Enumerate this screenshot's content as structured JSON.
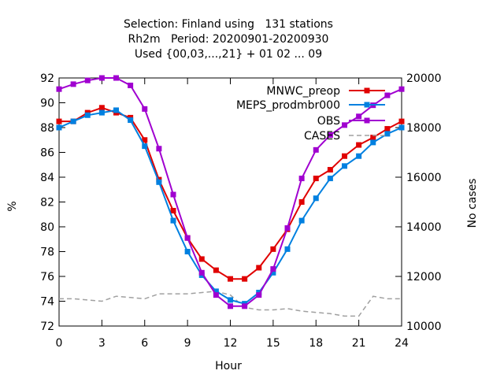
{
  "chart_data": {
    "type": "line",
    "title": [
      "Selection: Finland using   131 stations",
      "Rh2m   Period: 20200901-20200930",
      "Used {00,03,...,21} + 01 02 ... 09"
    ],
    "xlabel": "Hour",
    "ylabel": "%",
    "y2label": "No cases",
    "xlim": [
      0,
      24
    ],
    "ylim": [
      72,
      92
    ],
    "y2lim": [
      10000,
      20000
    ],
    "xticks": [
      0,
      3,
      6,
      9,
      12,
      15,
      18,
      21,
      24
    ],
    "yticks": [
      72,
      74,
      76,
      78,
      80,
      82,
      84,
      86,
      88,
      90,
      92
    ],
    "y2ticks": [
      10000,
      12000,
      14000,
      16000,
      18000,
      20000
    ],
    "grid": false,
    "legend_position": "top-right",
    "x": [
      0,
      1,
      2,
      3,
      4,
      5,
      6,
      7,
      8,
      9,
      10,
      11,
      12,
      13,
      14,
      15,
      16,
      17,
      18,
      19,
      20,
      21,
      22,
      23,
      24
    ],
    "series": [
      {
        "name": "MNWC_preop",
        "color": "#e00000",
        "axis": "y",
        "marker": "square",
        "values": [
          88.5,
          88.5,
          89.2,
          89.6,
          89.2,
          88.8,
          87.0,
          83.8,
          81.3,
          79.1,
          77.4,
          76.5,
          75.8,
          75.8,
          76.7,
          78.2,
          79.8,
          82.0,
          83.9,
          84.6,
          85.7,
          86.6,
          87.2,
          87.9,
          88.5
        ]
      },
      {
        "name": "MEPS_prodmbr000",
        "color": "#0080e0",
        "axis": "y",
        "marker": "square",
        "values": [
          88.0,
          88.5,
          89.0,
          89.2,
          89.4,
          88.6,
          86.5,
          83.6,
          80.5,
          78.0,
          76.1,
          74.8,
          74.1,
          73.8,
          74.7,
          76.3,
          78.2,
          80.5,
          82.3,
          83.9,
          84.9,
          85.7,
          86.8,
          87.5,
          88.0
        ]
      },
      {
        "name": "OBS",
        "color": "#a000d0",
        "axis": "y",
        "marker": "square",
        "values": [
          91.1,
          91.5,
          91.8,
          92.0,
          92.0,
          91.4,
          89.5,
          86.3,
          82.6,
          79.1,
          76.3,
          74.5,
          73.6,
          73.6,
          74.5,
          76.6,
          79.9,
          83.9,
          86.2,
          87.4,
          88.2,
          88.9,
          89.8,
          90.6,
          91.1
        ]
      },
      {
        "name": "CASES",
        "color": "#a0a0a0",
        "axis": "y2",
        "marker": "none",
        "dashed": true,
        "values": [
          11100,
          11100,
          11050,
          11000,
          11200,
          11150,
          11100,
          11300,
          11300,
          11300,
          11350,
          11400,
          11250,
          10750,
          10650,
          10650,
          10700,
          10600,
          10550,
          10500,
          10400,
          10400,
          11200,
          11100,
          11100
        ]
      }
    ]
  }
}
